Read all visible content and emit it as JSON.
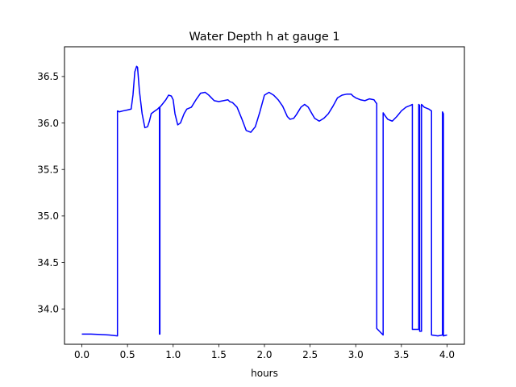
{
  "chart_data": {
    "type": "line",
    "title": "Water Depth h at gauge 1",
    "xlabel": "hours",
    "ylabel": "",
    "xlim": [
      -0.19,
      4.19
    ],
    "ylim": [
      33.62,
      36.82
    ],
    "xticks": [
      0.0,
      0.5,
      1.0,
      1.5,
      2.0,
      2.5,
      3.0,
      3.5,
      4.0
    ],
    "xtick_labels": [
      "0.0",
      "0.5",
      "1.0",
      "1.5",
      "2.0",
      "2.5",
      "3.0",
      "3.5",
      "4.0"
    ],
    "yticks": [
      34.0,
      34.5,
      35.0,
      35.5,
      36.0,
      36.5
    ],
    "ytick_labels": [
      "34.0",
      "34.5",
      "35.0",
      "35.5",
      "36.0",
      "36.5"
    ],
    "grid": false,
    "legend": "none",
    "series": [
      {
        "color": "#0000ff",
        "x": [
          0.0,
          0.1,
          0.2,
          0.3,
          0.39,
          0.39,
          0.41,
          0.45,
          0.5,
          0.54,
          0.56,
          0.58,
          0.6,
          0.61,
          0.63,
          0.66,
          0.69,
          0.72,
          0.74,
          0.76,
          0.8,
          0.83,
          0.85,
          0.85,
          0.855,
          0.855,
          0.88,
          0.92,
          0.95,
          0.98,
          1.0,
          1.02,
          1.05,
          1.08,
          1.12,
          1.15,
          1.2,
          1.25,
          1.3,
          1.35,
          1.39,
          1.42,
          1.45,
          1.5,
          1.55,
          1.6,
          1.62,
          1.65,
          1.7,
          1.75,
          1.8,
          1.85,
          1.9,
          1.95,
          2.0,
          2.05,
          2.1,
          2.15,
          2.2,
          2.25,
          2.28,
          2.32,
          2.35,
          2.4,
          2.44,
          2.48,
          2.52,
          2.55,
          2.6,
          2.65,
          2.7,
          2.75,
          2.8,
          2.85,
          2.9,
          2.95,
          2.97,
          3.0,
          3.05,
          3.1,
          3.15,
          3.2,
          3.22,
          3.23,
          3.23,
          3.3,
          3.3,
          3.32,
          3.35,
          3.4,
          3.45,
          3.5,
          3.55,
          3.6,
          3.62,
          3.62,
          3.69,
          3.69,
          3.7,
          3.7,
          3.72,
          3.72,
          3.75,
          3.8,
          3.83,
          3.83,
          3.9,
          3.95,
          3.95,
          3.96,
          3.96,
          4.0
        ],
        "y": [
          33.73,
          33.73,
          33.725,
          33.72,
          33.71,
          36.13,
          36.12,
          36.13,
          36.14,
          36.15,
          36.3,
          36.55,
          36.61,
          36.6,
          36.35,
          36.1,
          35.95,
          35.96,
          36.02,
          36.1,
          36.13,
          36.15,
          36.17,
          33.73,
          33.73,
          36.17,
          36.2,
          36.25,
          36.3,
          36.29,
          36.25,
          36.1,
          35.98,
          36.0,
          36.1,
          36.15,
          36.17,
          36.25,
          36.32,
          36.33,
          36.3,
          36.27,
          36.24,
          36.23,
          36.24,
          36.25,
          36.23,
          36.22,
          36.17,
          36.05,
          35.92,
          35.9,
          35.96,
          36.12,
          36.3,
          36.33,
          36.3,
          36.25,
          36.18,
          36.07,
          36.04,
          36.05,
          36.09,
          36.17,
          36.2,
          36.17,
          36.1,
          36.05,
          36.02,
          36.05,
          36.1,
          36.18,
          36.27,
          36.3,
          36.31,
          36.31,
          36.29,
          36.27,
          36.25,
          36.24,
          36.26,
          36.25,
          36.22,
          36.21,
          33.79,
          33.72,
          36.11,
          36.08,
          36.04,
          36.02,
          36.07,
          36.13,
          36.17,
          36.19,
          36.2,
          33.78,
          33.78,
          36.2,
          36.19,
          33.76,
          33.76,
          36.2,
          36.17,
          36.15,
          36.13,
          33.72,
          33.71,
          33.72,
          36.12,
          36.1,
          33.71,
          33.72
        ]
      }
    ]
  }
}
